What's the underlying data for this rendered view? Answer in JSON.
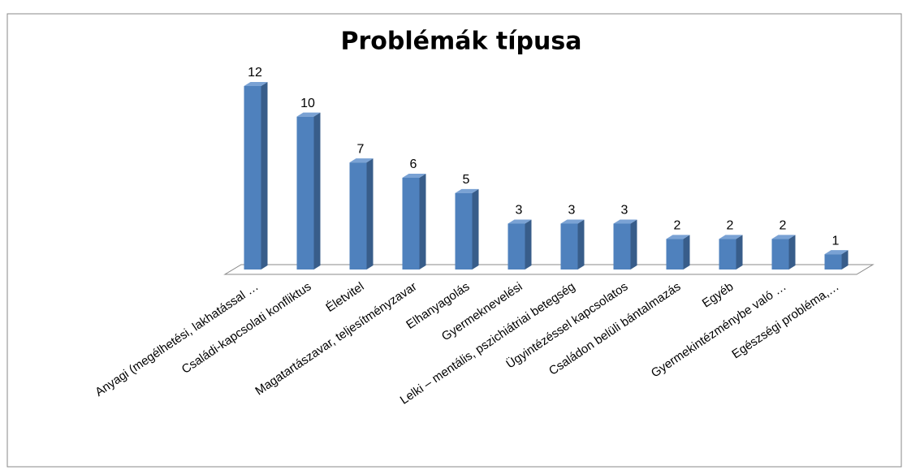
{
  "chart_data": {
    "type": "bar3d",
    "title": "Problémák típusa",
    "categories": [
      "Anyagi (megélhetési, lakhatással …",
      "Családi-kapcsolati konfliktus",
      "Életvitel",
      "Magatartászavar, teljesítményzavar",
      "Elhanyagolás",
      "Gyermeknevelési",
      "Lelki – mentális, pszichiátriai betegség",
      "Ügyintézéssel kapcsolatos",
      "Családon belüli bántalmazás",
      "Egyéb",
      "Gyermekintézménybe való …",
      "Egészségi probléma,…"
    ],
    "values": [
      12,
      10,
      7,
      6,
      5,
      3,
      3,
      3,
      2,
      2,
      2,
      1
    ],
    "color": "#4f81bd"
  }
}
